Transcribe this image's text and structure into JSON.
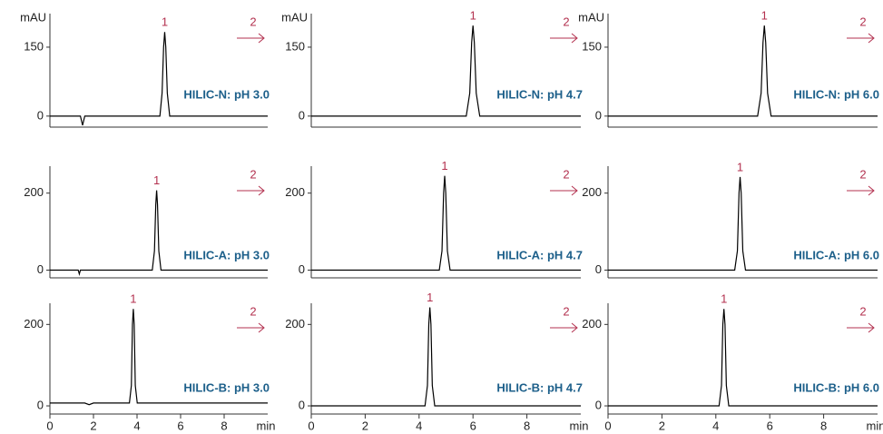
{
  "chart_data": [
    {
      "type": "line",
      "label": "HILIC-N: pH 3.0",
      "ylabel": "mAU",
      "annotations": [
        "1",
        "2"
      ],
      "x": [
        0,
        1.4,
        1.5,
        1.6,
        5.05,
        5.15,
        5.22,
        5.27,
        5.32,
        5.39,
        5.5,
        10
      ],
      "values": [
        0,
        0,
        -20,
        0,
        0,
        50,
        150,
        183,
        150,
        50,
        0,
        0
      ],
      "xlim": [
        0,
        10
      ],
      "ylim": [
        -24,
        223
      ],
      "yticks": [
        0,
        150
      ],
      "color": "#000000",
      "label_color": "#1c5f8a",
      "annotation_color": "#b3314f"
    },
    {
      "type": "line",
      "label": "HILIC-N: pH 4.7",
      "ylabel": "mAU",
      "annotations": [
        "1",
        "2"
      ],
      "x": [
        0,
        5.75,
        5.88,
        5.95,
        6.0,
        6.05,
        6.12,
        6.25,
        10
      ],
      "values": [
        0,
        0,
        50,
        160,
        197,
        160,
        50,
        0,
        0
      ],
      "xlim": [
        0,
        10
      ],
      "ylim": [
        -24,
        223
      ],
      "yticks": [
        0,
        150
      ],
      "color": "#000000",
      "label_color": "#1c5f8a",
      "annotation_color": "#b3314f"
    },
    {
      "type": "line",
      "label": "HILIC-N: pH 6.0",
      "ylabel": "mAU",
      "annotations": [
        "1",
        "2"
      ],
      "x": [
        0,
        5.55,
        5.68,
        5.75,
        5.8,
        5.85,
        5.92,
        6.05,
        10
      ],
      "values": [
        0,
        0,
        50,
        160,
        197,
        160,
        50,
        0,
        0
      ],
      "xlim": [
        0,
        10
      ],
      "ylim": [
        -24,
        223
      ],
      "yticks": [
        0,
        150
      ],
      "color": "#000000",
      "label_color": "#1c5f8a",
      "annotation_color": "#b3314f"
    },
    {
      "type": "line",
      "label": "HILIC-A: pH 3.0",
      "annotations": [
        "1",
        "2"
      ],
      "x": [
        0,
        1.3,
        1.35,
        1.4,
        4.7,
        4.8,
        4.86,
        4.9,
        4.94,
        5.0,
        5.1,
        10
      ],
      "values": [
        0,
        0,
        -10,
        0,
        0,
        50,
        170,
        207,
        170,
        50,
        0,
        0
      ],
      "xlim": [
        0,
        10
      ],
      "ylim": [
        -20,
        270
      ],
      "yticks": [
        0,
        200
      ],
      "color": "#000000",
      "label_color": "#1c5f8a",
      "annotation_color": "#b3314f"
    },
    {
      "type": "line",
      "label": "HILIC-A: pH 4.7",
      "annotations": [
        "1",
        "2"
      ],
      "x": [
        0,
        4.75,
        4.85,
        4.91,
        4.95,
        4.99,
        5.05,
        5.15,
        10
      ],
      "values": [
        0,
        0,
        50,
        200,
        245,
        200,
        50,
        0,
        0
      ],
      "xlim": [
        0,
        10
      ],
      "ylim": [
        -20,
        270
      ],
      "yticks": [
        0,
        200
      ],
      "color": "#000000",
      "label_color": "#1c5f8a",
      "annotation_color": "#b3314f"
    },
    {
      "type": "line",
      "label": "HILIC-A: pH 6.0",
      "annotations": [
        "1",
        "2"
      ],
      "x": [
        0,
        4.7,
        4.8,
        4.86,
        4.9,
        4.94,
        5.0,
        5.1,
        10
      ],
      "values": [
        0,
        0,
        50,
        200,
        242,
        200,
        50,
        0,
        0
      ],
      "xlim": [
        0,
        10
      ],
      "ylim": [
        -20,
        270
      ],
      "yticks": [
        0,
        200
      ],
      "color": "#000000",
      "label_color": "#1c5f8a",
      "annotation_color": "#b3314f"
    },
    {
      "type": "line",
      "label": "HILIC-B: pH 3.0",
      "xlabel": "min",
      "annotations": [
        "1",
        "2"
      ],
      "x": [
        0,
        1.6,
        1.8,
        2.0,
        3.65,
        3.74,
        3.79,
        3.83,
        3.87,
        3.92,
        4.01,
        10
      ],
      "values": [
        7,
        7,
        3,
        7,
        7,
        50,
        200,
        238,
        200,
        50,
        7,
        7
      ],
      "xlim": [
        0,
        10
      ],
      "ylim": [
        -20,
        252
      ],
      "yticks": [
        0,
        200
      ],
      "xticks": [
        0,
        2,
        4,
        6,
        8
      ],
      "color": "#000000",
      "label_color": "#1c5f8a",
      "annotation_color": "#b3314f"
    },
    {
      "type": "line",
      "label": "HILIC-B: pH 4.7",
      "xlabel": "min",
      "annotations": [
        "1",
        "2"
      ],
      "x": [
        0,
        4.22,
        4.31,
        4.36,
        4.4,
        4.44,
        4.49,
        4.58,
        10
      ],
      "values": [
        0,
        0,
        50,
        200,
        242,
        200,
        50,
        0,
        0
      ],
      "xlim": [
        0,
        10
      ],
      "ylim": [
        -20,
        252
      ],
      "yticks": [
        0,
        200
      ],
      "xticks": [
        0,
        2,
        4,
        6,
        8
      ],
      "color": "#000000",
      "label_color": "#1c5f8a",
      "annotation_color": "#b3314f"
    },
    {
      "type": "line",
      "label": "HILIC-B: pH 6.0",
      "xlabel": "min",
      "annotations": [
        "1",
        "2"
      ],
      "x": [
        0,
        4.12,
        4.21,
        4.26,
        4.3,
        4.34,
        4.39,
        4.48,
        10
      ],
      "values": [
        0,
        0,
        50,
        200,
        238,
        200,
        50,
        0,
        0
      ],
      "xlim": [
        0,
        10
      ],
      "ylim": [
        -20,
        252
      ],
      "yticks": [
        0,
        200
      ],
      "xticks": [
        0,
        2,
        4,
        6,
        8
      ],
      "color": "#000000",
      "label_color": "#1c5f8a",
      "annotation_color": "#b3314f"
    }
  ]
}
